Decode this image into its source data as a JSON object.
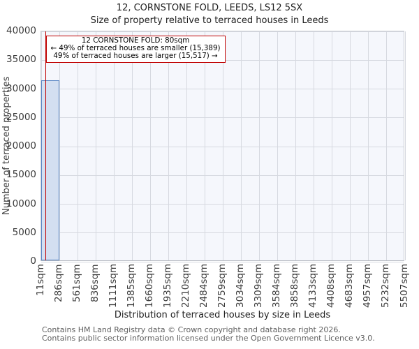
{
  "title": "12, CORNSTONE FOLD, LEEDS, LS12 5SX",
  "subtitle": "Size of property relative to terraced houses in Leeds",
  "annotation": {
    "line1": "12 CORNSTONE FOLD: 80sqm",
    "line2": "← 49% of terraced houses are smaller (15,389)",
    "line3": "49% of terraced houses are larger (15,517) →"
  },
  "chart_data": {
    "type": "bar",
    "title": "12, CORNSTONE FOLD, LEEDS, LS12 5SX",
    "subtitle": "Size of property relative to terraced houses in Leeds",
    "xlabel": "Distribution of terraced houses by size in Leeds",
    "ylabel": "Number of terraced properties",
    "ylim": [
      0,
      40000
    ],
    "grid": true,
    "y_ticks": [
      0,
      5000,
      10000,
      15000,
      20000,
      25000,
      30000,
      35000,
      40000
    ],
    "y_tick_labels": [
      "0",
      "5000",
      "10000",
      "15000",
      "20000",
      "25000",
      "30000",
      "35000",
      "40000"
    ],
    "x_tick_labels": [
      "11sqm",
      "286sqm",
      "561sqm",
      "836sqm",
      "1111sqm",
      "1385sqm",
      "1660sqm",
      "1935sqm",
      "2210sqm",
      "2484sqm",
      "2759sqm",
      "3034sqm",
      "3309sqm",
      "3584sqm",
      "3858sqm",
      "4133sqm",
      "4408sqm",
      "4683sqm",
      "4957sqm",
      "5232sqm",
      "5507sqm"
    ],
    "bin_edges_sqm": [
      11,
      286,
      561,
      836,
      1111,
      1385,
      1660,
      1935,
      2210,
      2484,
      2759,
      3034,
      3309,
      3584,
      3858,
      4133,
      4408,
      4683,
      4957,
      5232,
      5507
    ],
    "values": [
      31300,
      0,
      0,
      0,
      0,
      0,
      0,
      0,
      0,
      0,
      0,
      0,
      0,
      0,
      0,
      0,
      0,
      0,
      0,
      0
    ],
    "marker": {
      "sqm": 80,
      "label": "12 CORNSTONE FOLD: 80sqm"
    }
  },
  "colors": {
    "bar_fill": "#d3dff1",
    "bar_edge": "#5b87c5",
    "marker_line": "#c00000",
    "annotation_border": "#c00000",
    "grid": "#d6d9e0",
    "plot_bg": "#f5f7fc"
  },
  "footer": {
    "line1": "Contains HM Land Registry data © Crown copyright and database right 2026.",
    "line2": "Contains public sector information licensed under the Open Government Licence v3.0."
  }
}
